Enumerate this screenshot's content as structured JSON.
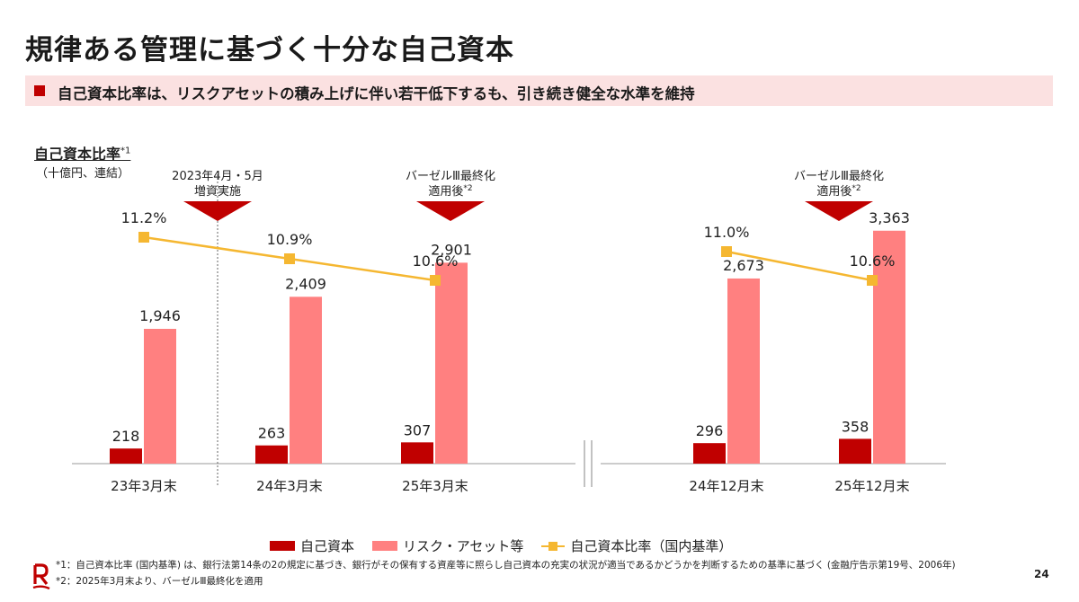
{
  "title": "規律ある管理に基づく十分な自己資本",
  "subtitle": "自己資本比率は、リスクアセットの積み上げに伴い若干低下するも、引き続き健全な水準を維持",
  "chart_heading": "自己資本比率",
  "chart_heading_note": "*1",
  "unit": "（十億円、連結）",
  "annotations": [
    {
      "line1": "2023年4月・5月",
      "line2": "増資実施",
      "note": ""
    },
    {
      "line1": "バーゼルⅢ最終化",
      "line2": "適用後",
      "note": "*2"
    },
    {
      "line1": "バーゼルⅢ最終化",
      "line2": "適用後",
      "note": "*2"
    }
  ],
  "chart_data": {
    "type": "bar",
    "categories": [
      "23年3月末",
      "24年3月末",
      "25年3月末",
      "24年12月末",
      "25年12月末"
    ],
    "series": [
      {
        "name": "自己資本",
        "type": "bar",
        "color": "#c00000",
        "values": [
          218,
          263,
          307,
          296,
          358
        ],
        "labels": [
          "218",
          "263",
          "307",
          "296",
          "358"
        ]
      },
      {
        "name": "リスク・アセット等",
        "type": "bar",
        "color": "#ff8080",
        "values": [
          1946,
          2409,
          2901,
          2673,
          3363
        ],
        "labels": [
          "1,946",
          "2,409",
          "2,901",
          "2,673",
          "3,363"
        ]
      },
      {
        "name": "自己資本比率（国内基準）",
        "type": "line",
        "color": "#f5b731",
        "values": [
          11.2,
          10.9,
          10.6,
          11.0,
          10.6
        ],
        "labels": [
          "11.2%",
          "10.9%",
          "10.6%",
          "11.0%",
          "10.6%"
        ]
      }
    ],
    "axis_break_after": "25年3月末"
  },
  "legend": {
    "capital": "自己資本",
    "risk_assets": "リスク・アセット等",
    "ratio": "自己資本比率（国内基準）"
  },
  "footnotes": {
    "fn1": "*1：自己資本比率 (国内基準) は、銀行法第14条の2の規定に基づき、銀行がその保有する資産等に照らし自己資本の充実の状況が適当であるかどうかを判断するための基準に基づく (金融庁告示第19号、2006年)",
    "fn2": "*2：2025年3月末より、バーゼルⅢ最終化を適用"
  },
  "page_number": "24",
  "colors": {
    "accent": "#bf0000",
    "band": "#fbe1e1"
  }
}
